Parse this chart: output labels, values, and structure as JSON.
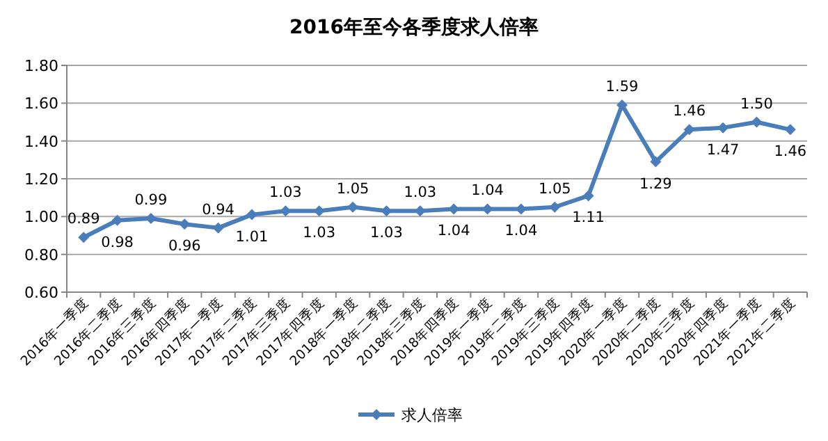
{
  "chart_data": {
    "type": "line",
    "title": "2016年至今各季度求人倍率",
    "categories": [
      "2016年一季度",
      "2016年二季度",
      "2016年三季度",
      "2016年四季度",
      "2017年一季度",
      "2017年二季度",
      "2017年三季度",
      "2017年四季度",
      "2018年一季度",
      "2018年二季度",
      "2018年三季度",
      "2018年四季度",
      "2019年一季度",
      "2019年二季度",
      "2019年三季度",
      "2019年四季度",
      "2020年一季度",
      "2020年二季度",
      "2020年三季度",
      "2020年四季度",
      "2021年一季度",
      "2021年二季度"
    ],
    "series": [
      {
        "name": "求人倍率",
        "color": "#4a7ebb",
        "values": [
          0.89,
          0.98,
          0.99,
          0.96,
          0.94,
          1.01,
          1.03,
          1.03,
          1.05,
          1.03,
          1.03,
          1.04,
          1.04,
          1.04,
          1.05,
          1.11,
          1.59,
          1.29,
          1.46,
          1.47,
          1.5,
          1.46
        ],
        "value_labels": [
          "0.89",
          "0.98",
          "0.99",
          "0.96",
          "0.94",
          "1.01",
          "1.03",
          "1.03",
          "1.05",
          "1.03",
          "1.03",
          "1.04",
          "1.04",
          "1.04",
          "1.05",
          "1.11",
          "1.59",
          "1.29",
          "1.46",
          "1.47",
          "1.50",
          "1.46"
        ]
      }
    ],
    "ylim": [
      0.6,
      1.8
    ],
    "yticks": [
      "0.60",
      "0.80",
      "1.00",
      "1.20",
      "1.40",
      "1.60",
      "1.80"
    ],
    "grid": "y",
    "legend": "bottom",
    "marker": "diamond",
    "line_style": "solid"
  }
}
